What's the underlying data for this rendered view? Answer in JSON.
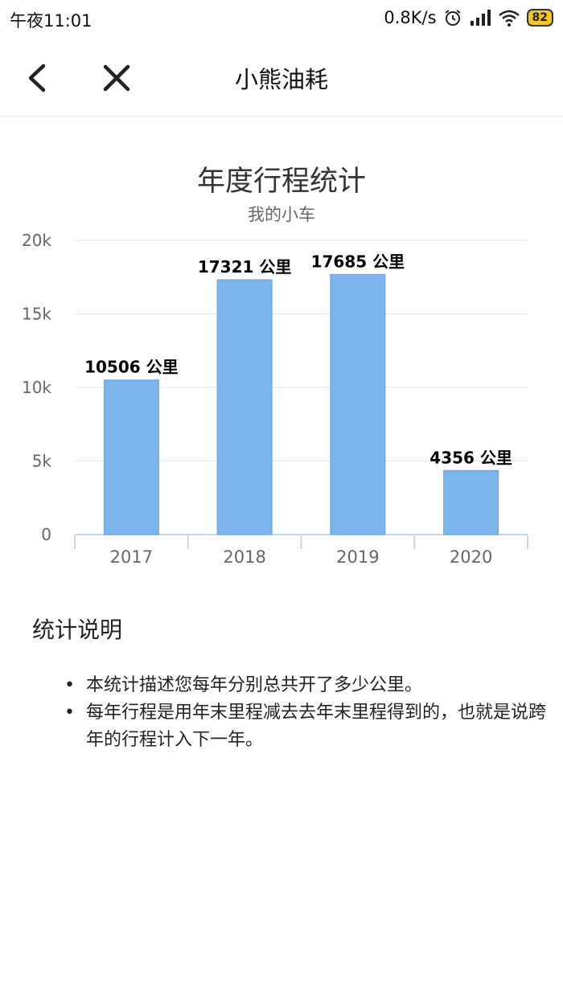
{
  "status_bar": {
    "time": "午夜11:01",
    "net_speed": "0.8K/s",
    "battery": "82",
    "icons": [
      "alarm-icon",
      "signal-icon",
      "wifi-icon",
      "battery-icon"
    ]
  },
  "header": {
    "title": "小熊油耗",
    "back_icon": "back-arrow-icon",
    "close_icon": "close-icon"
  },
  "chart_data": {
    "type": "bar",
    "title": "年度行程统计",
    "subtitle": "我的小车",
    "categories": [
      "2017",
      "2018",
      "2019",
      "2020"
    ],
    "values": [
      10506,
      17321,
      17685,
      4356
    ],
    "data_labels": [
      "10506 公里",
      "17321 公里",
      "17685 公里",
      "4356 公里"
    ],
    "ylim": [
      0,
      20000
    ],
    "yticks": [
      0,
      5000,
      10000,
      15000,
      20000
    ],
    "ytick_labels": [
      "0",
      "5k",
      "10k",
      "15k",
      "20k"
    ],
    "grid": true,
    "bar_color": "#7cb5ec"
  },
  "notes": {
    "heading": "统计说明",
    "items": [
      "本统计描述您每年分别总共开了多少公里。",
      "每年行程是用年末里程减去去年末里程得到的，也就是说跨年的行程计入下一年。"
    ]
  }
}
